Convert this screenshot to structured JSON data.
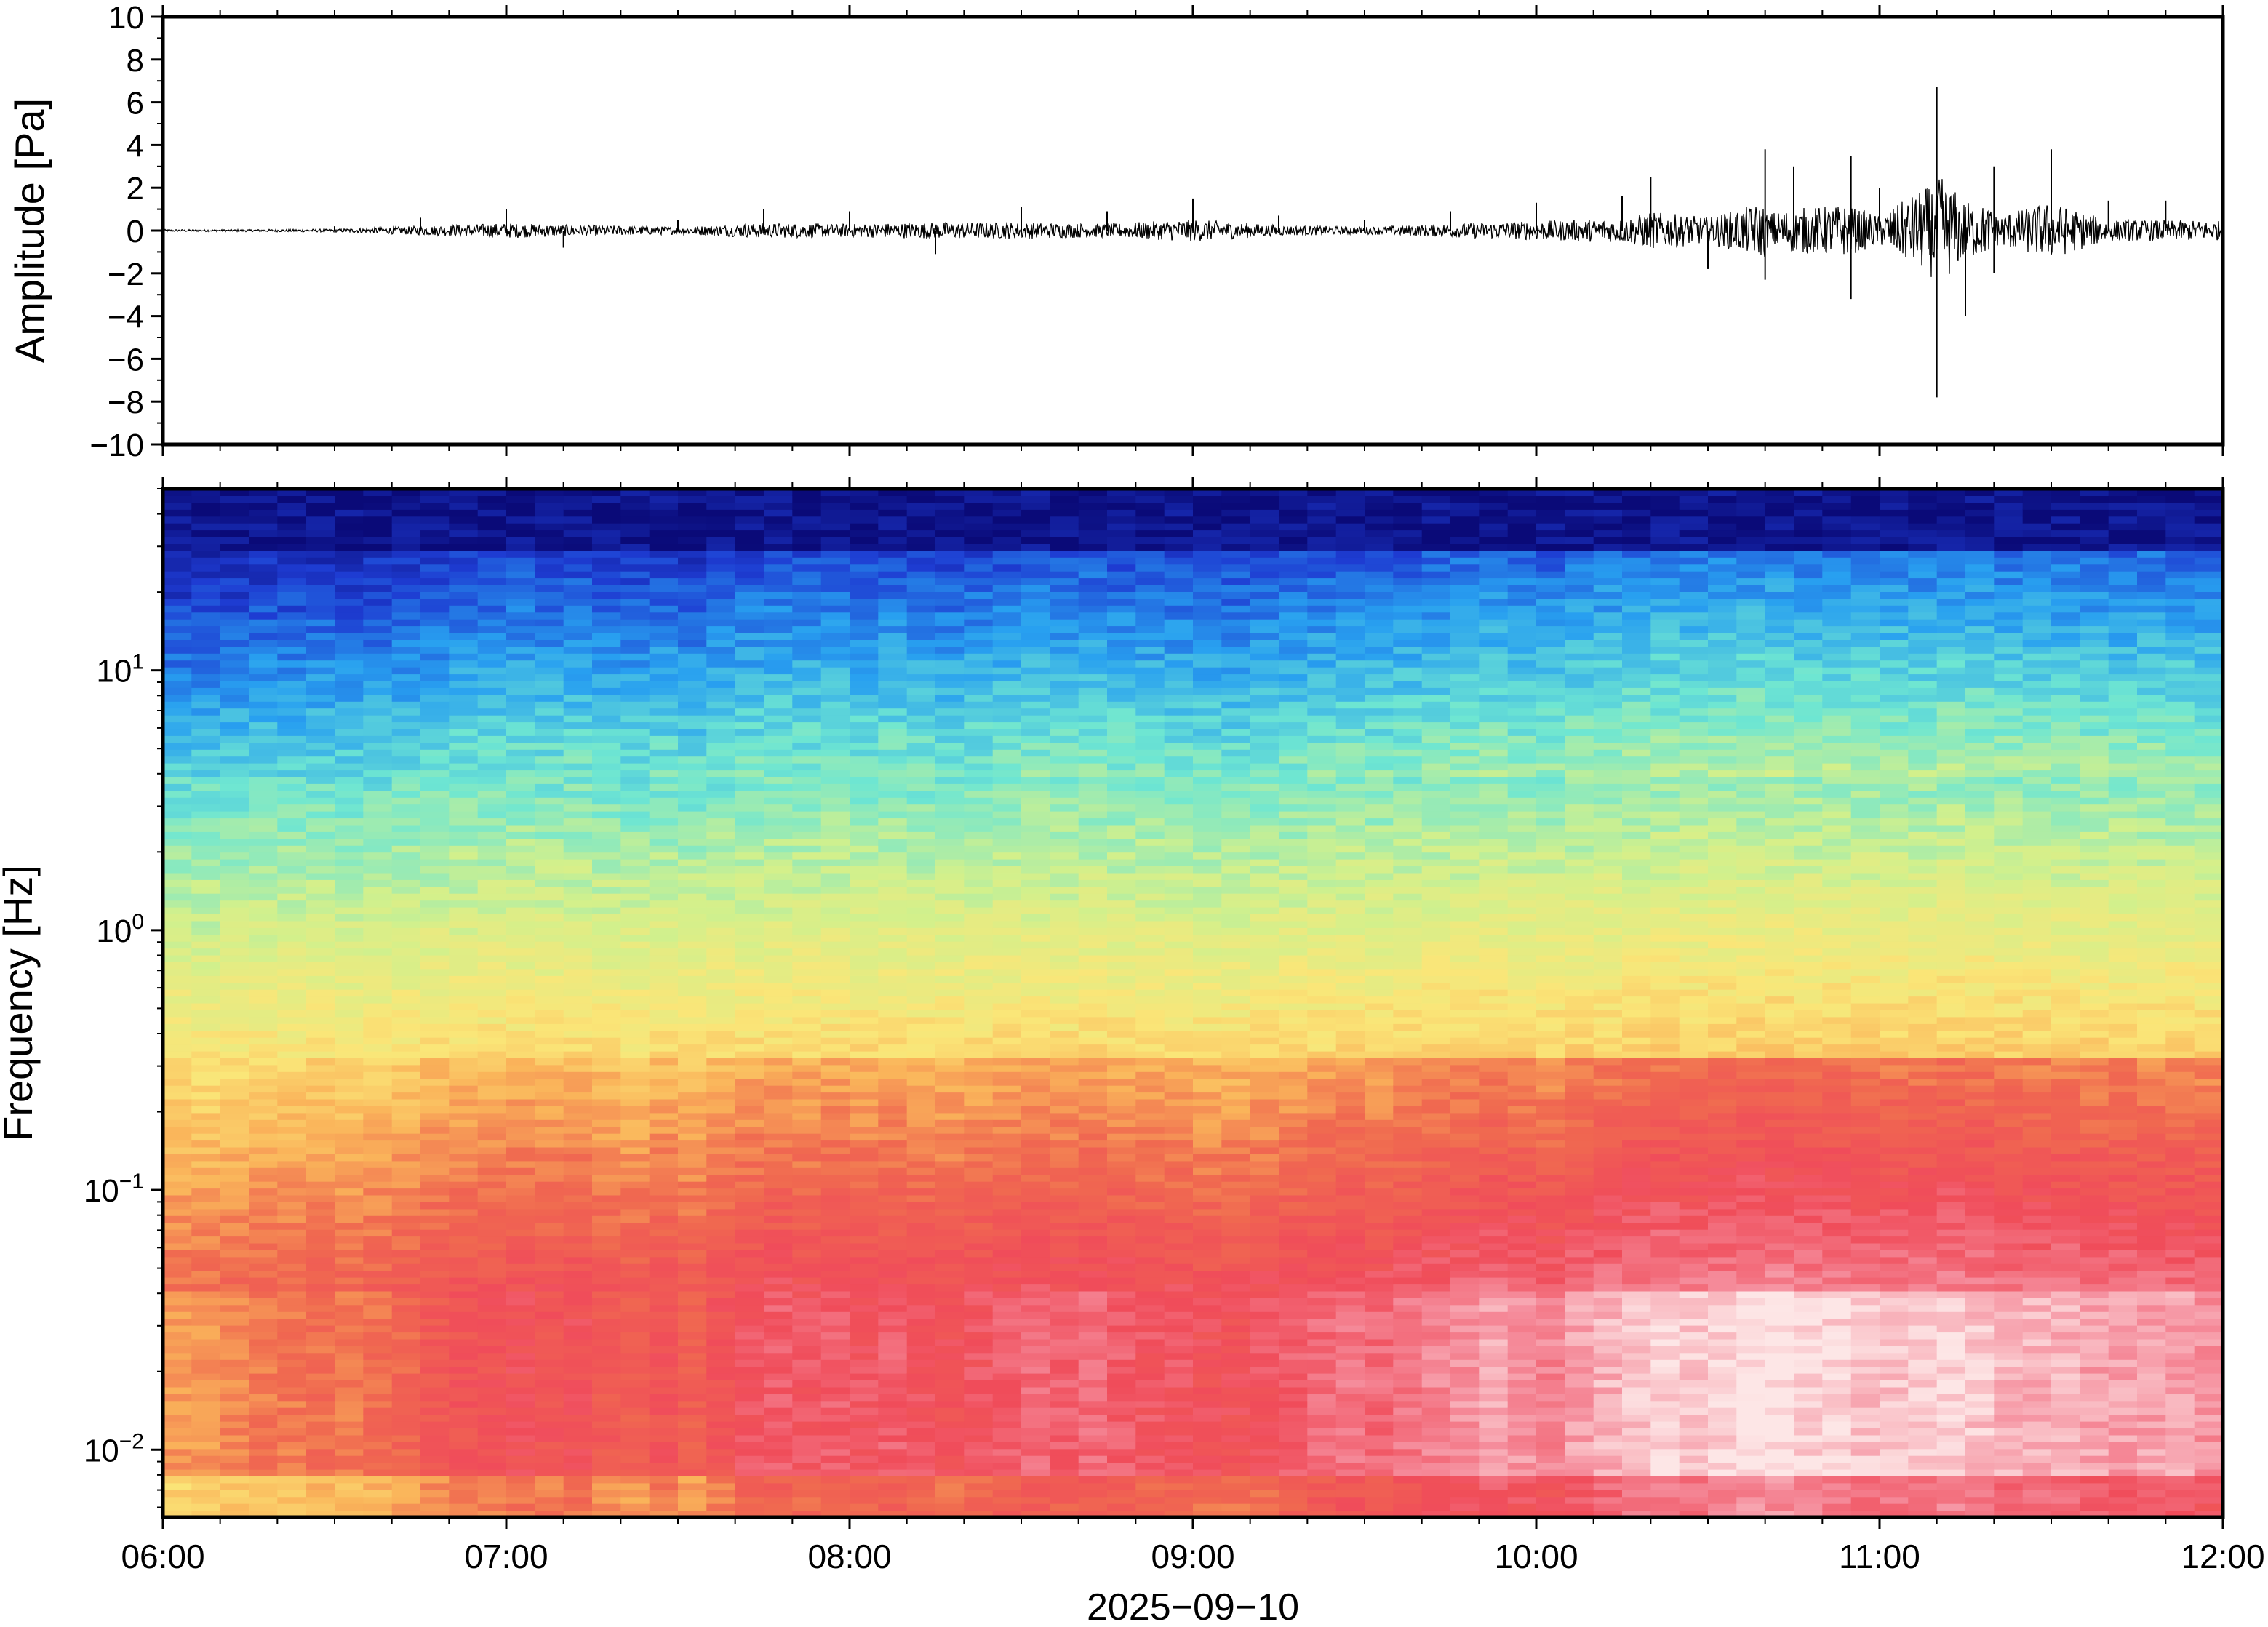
{
  "chart_data": [
    {
      "type": "line",
      "ylabel": "Amplitude [Pa]",
      "ylim": [
        -10,
        10
      ],
      "yticks": [
        "10",
        "8",
        "6",
        "4",
        "2",
        "0",
        "−2",
        "−4",
        "−6",
        "−8",
        "−10"
      ],
      "ytick_values": [
        10,
        8,
        6,
        4,
        2,
        0,
        -2,
        -4,
        -6,
        -8,
        -10
      ],
      "xlim": [
        "2025-09-10T06:00",
        "2025-09-10T12:00"
      ],
      "series": [
        {
          "color": "#000000",
          "x": [
            "06:00",
            "06:30",
            "06:45",
            "07:00",
            "07:10",
            "07:30",
            "07:45",
            "08:00",
            "08:15",
            "08:30",
            "08:45",
            "09:00",
            "09:15",
            "09:30",
            "09:45",
            "10:00",
            "10:15",
            "10:20",
            "10:30",
            "10:40",
            "10:40",
            "10:45",
            "10:55",
            "10:55",
            "11:00",
            "11:10",
            "11:10",
            "11:15",
            "11:20",
            "11:20",
            "11:30",
            "11:40",
            "11:50",
            "12:00"
          ],
          "y": [
            0.1,
            0.2,
            0.6,
            1.0,
            -0.8,
            0.5,
            1.0,
            0.9,
            -1.1,
            1.1,
            0.9,
            1.5,
            0.7,
            0.5,
            0.9,
            1.3,
            1.6,
            2.5,
            -1.8,
            3.8,
            -2.3,
            3.0,
            3.5,
            -3.2,
            2.0,
            6.7,
            -7.8,
            -4.0,
            3.0,
            -2.0,
            3.8,
            1.4,
            1.4,
            1.3
          ]
        }
      ],
      "grid": false
    },
    {
      "type": "heatmap",
      "ylabel": "Frequency [Hz]",
      "yscale": "log",
      "ylim": [
        0.0055,
        50
      ],
      "yticks": [
        {
          "base": "10",
          "exp": "1",
          "value": 10
        },
        {
          "base": "10",
          "exp": "0",
          "value": 1
        },
        {
          "base": "10",
          "exp": "−1",
          "value": 0.1
        },
        {
          "base": "10",
          "exp": "−2",
          "value": 0.01
        }
      ],
      "xlabel": "2025−09−10",
      "xlim": [
        "06:00",
        "12:00"
      ],
      "xticks": [
        "06:00",
        "07:00",
        "08:00",
        "09:00",
        "10:00",
        "11:00",
        "12:00"
      ],
      "colormap": [
        "#0a0a78",
        "#1e3cd2",
        "#28a0f0",
        "#6ee6d2",
        "#d2f08c",
        "#fae678",
        "#fab45a",
        "#f06950",
        "#f04c5a",
        "#f58c9b",
        "#fde6e6"
      ],
      "time_step_minutes": 5,
      "energy_profile": [
        0.05,
        0.05,
        0.1,
        0.15,
        0.15,
        0.2,
        0.15,
        0.2,
        0.25,
        0.35,
        0.4,
        0.4,
        0.45,
        0.4,
        0.45,
        0.35,
        0.3,
        0.4,
        0.3,
        0.4,
        0.5,
        0.55,
        0.5,
        0.55,
        0.5,
        0.55,
        0.5,
        0.45,
        0.5,
        0.55,
        0.6,
        0.55,
        0.6,
        0.55,
        0.5,
        0.5,
        0.45,
        0.45,
        0.5,
        0.55,
        0.6,
        0.65,
        0.6,
        0.65,
        0.7,
        0.75,
        0.8,
        0.75,
        0.7,
        0.8,
        0.85,
        0.9,
        0.95,
        0.9,
        0.95,
        1.0,
        1.0,
        0.95,
        0.95,
        0.9,
        0.9,
        0.9,
        0.95,
        0.9,
        0.85,
        0.85,
        0.85,
        0.8,
        0.8,
        0.8,
        0.8,
        0.75
      ]
    }
  ]
}
